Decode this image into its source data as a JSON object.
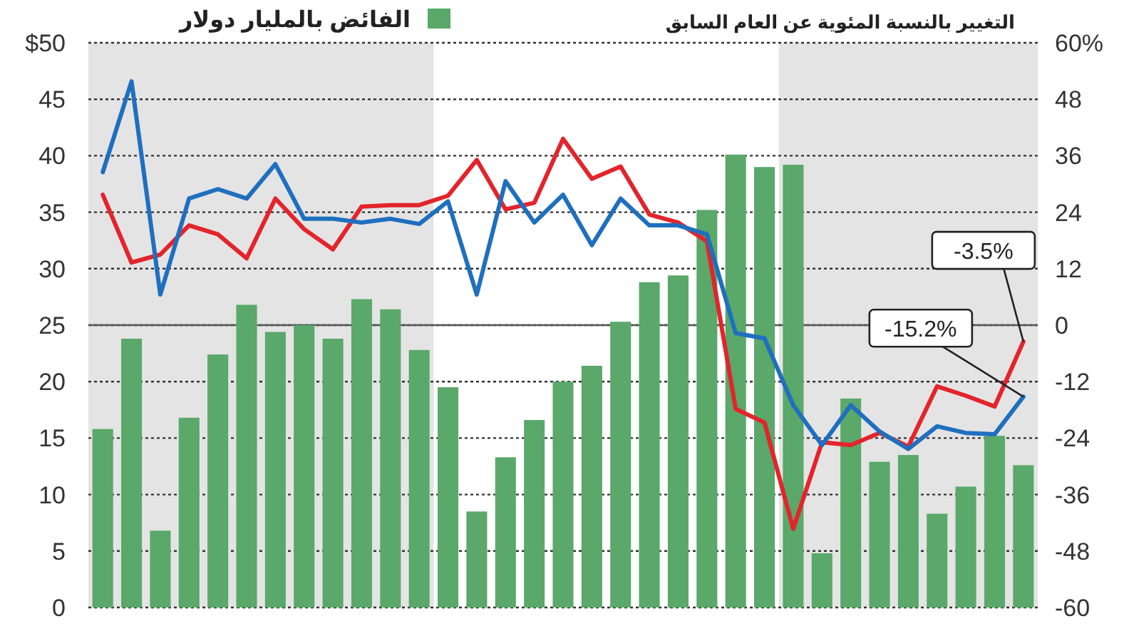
{
  "chart_data": {
    "type": "bar",
    "y2label": "التغيير بالنسبة المئوية عن العام السابق",
    "categories": [
      null,
      null,
      null,
      null,
      null,
      null,
      null,
      null,
      null,
      null,
      null,
      null,
      null,
      null,
      null,
      null,
      null,
      null,
      null,
      null,
      null,
      null,
      null,
      null,
      null,
      null,
      null,
      null,
      null,
      null,
      null,
      null,
      null
    ],
    "series": [
      {
        "name": "الفائض بالمليار دولار",
        "color": "#5aa86a",
        "values": [
          15.8,
          23.8,
          6.8,
          16.8,
          22.4,
          26.8,
          24.4,
          25.0,
          23.8,
          27.3,
          26.4,
          22.8,
          19.5,
          8.5,
          13.3,
          16.6,
          20.0,
          21.4,
          25.3,
          28.8,
          29.4,
          35.2,
          40.1,
          39.0,
          39.2,
          4.8,
          18.5,
          12.9,
          13.5,
          8.3,
          10.7,
          15.2,
          12.6
        ]
      },
      {
        "type": "line",
        "axis": "y2",
        "color": "#e3242b",
        "values": [
          27.7,
          13.3,
          15.0,
          21.2,
          19.3,
          14.2,
          26.9,
          20.4,
          16.1,
          25.2,
          25.5,
          25.5,
          27.5,
          35.1,
          24.6,
          26.0,
          39.6,
          31.1,
          33.7,
          23.5,
          21.8,
          17.8,
          -17.8,
          -20.7,
          -43.3,
          -24.9,
          -25.5,
          -22.9,
          -25.8,
          -13.0,
          -15.0,
          -17.3,
          -3.5
        ]
      },
      {
        "type": "line",
        "axis": "y2",
        "color": "#1f6fbf",
        "values": [
          32.5,
          51.8,
          6.5,
          26.9,
          28.9,
          26.9,
          34.2,
          22.6,
          22.6,
          21.8,
          22.6,
          21.5,
          26.3,
          6.5,
          30.6,
          21.8,
          27.7,
          17.0,
          26.9,
          21.2,
          21.2,
          19.3,
          -1.7,
          -2.8,
          -17.0,
          -25.5,
          -17.0,
          -22.6,
          -26.3,
          -21.5,
          -22.9,
          -23.2,
          -15.2
        ]
      }
    ],
    "ylim": [
      0,
      50
    ],
    "yticks": [
      {
        "value": 50,
        "label": "$50"
      },
      45,
      40,
      35,
      30,
      25,
      20,
      15,
      10,
      5,
      0
    ],
    "y2lim": [
      -60,
      60
    ],
    "y2ticks": [
      {
        "value": 60,
        "label": "60%"
      },
      48,
      36,
      24,
      12,
      0,
      -12,
      -24,
      -36,
      -48,
      -60
    ],
    "tick_labels": "y",
    "grid": "y",
    "legend": "top",
    "ref_lines": [
      {
        "axis": "y2",
        "value": 0,
        "color": "#555555"
      }
    ],
    "annotations": [
      "-3.5%",
      "-15.2%"
    ]
  }
}
